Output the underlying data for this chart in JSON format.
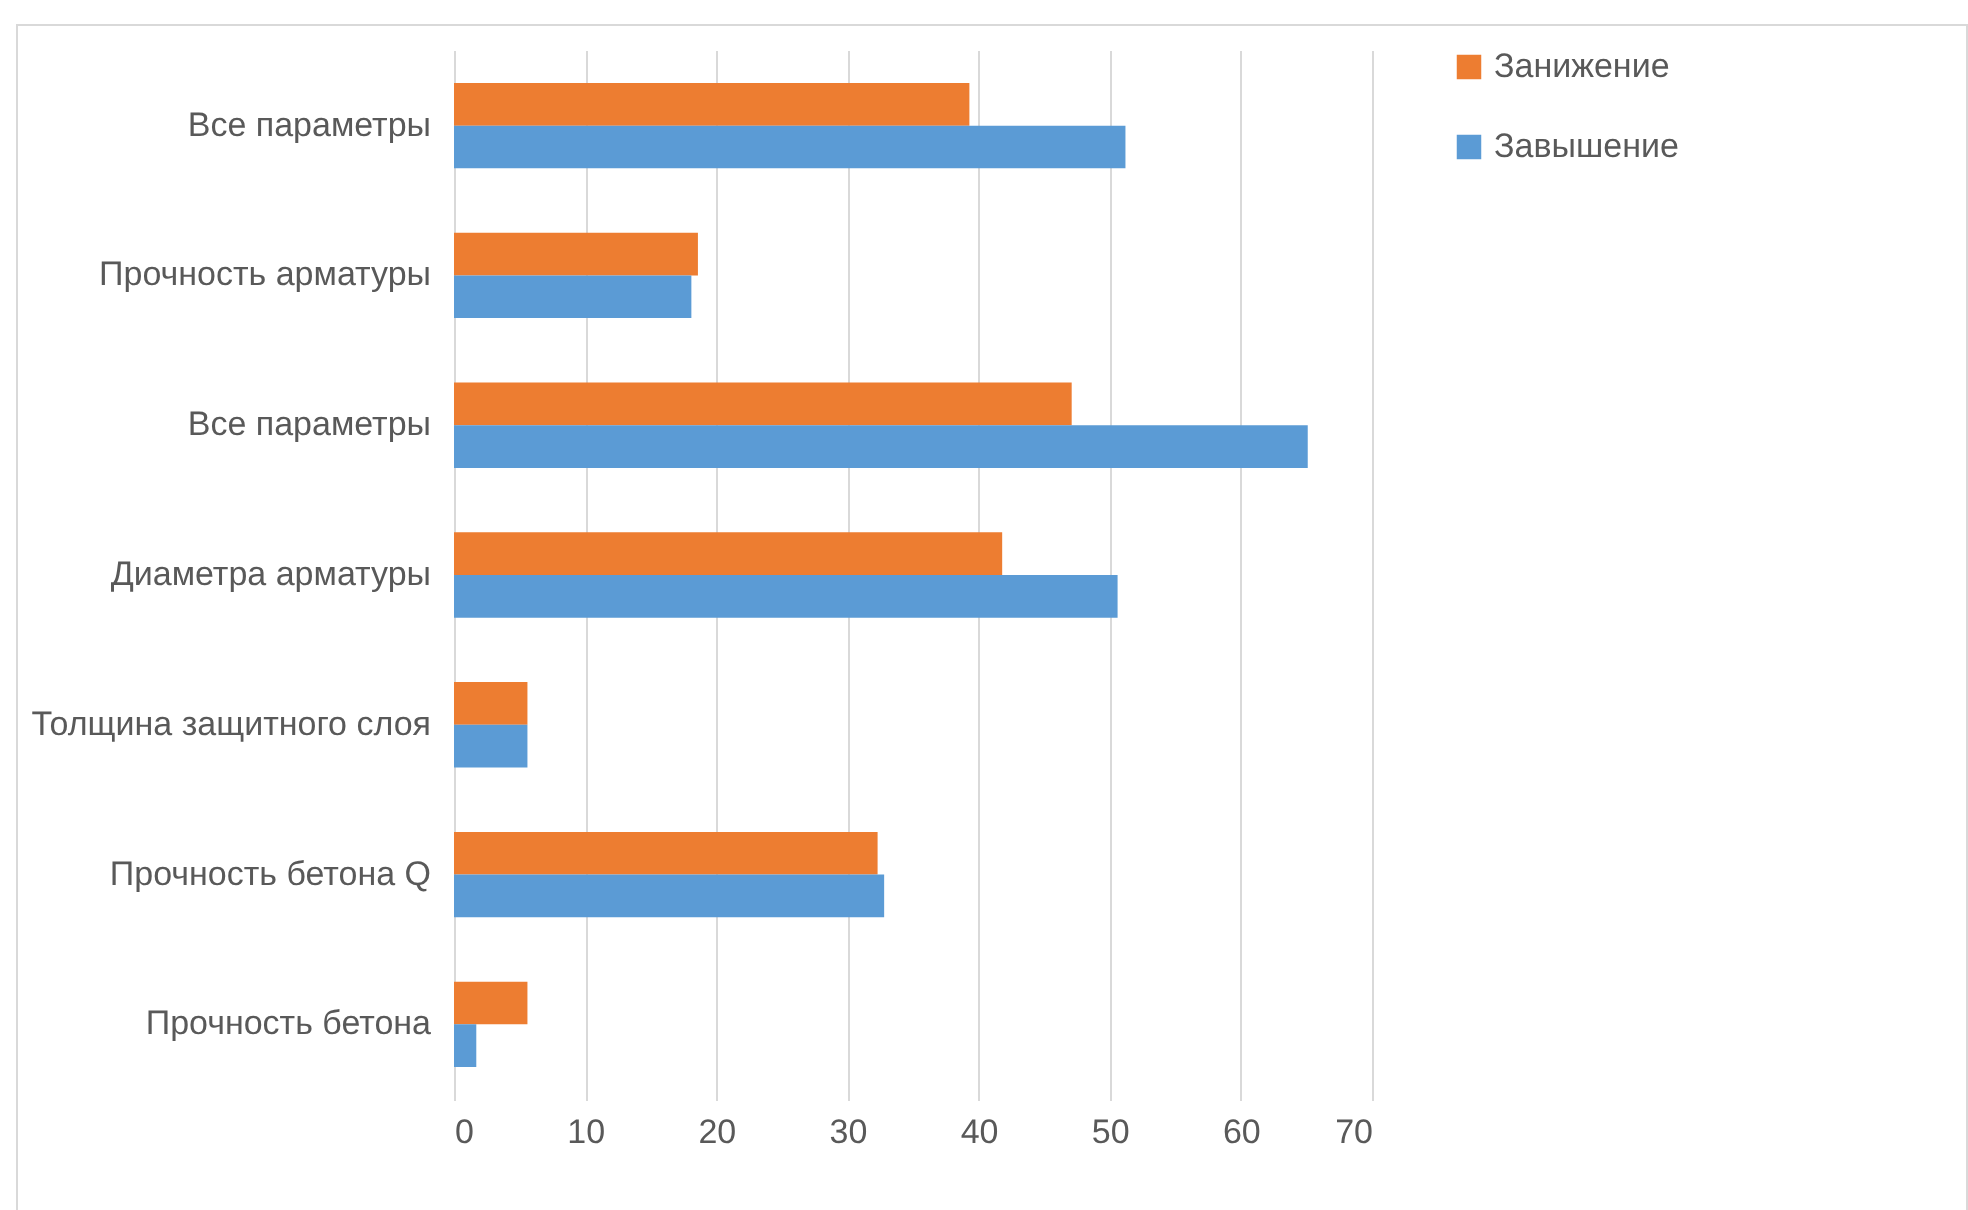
{
  "chart_data": {
    "type": "bar",
    "orientation": "horizontal",
    "categories": [
      "Все параметры",
      "Прочность арматуры",
      "Все параметры",
      "Диаметра арматуры",
      "Толщина защитного слоя",
      "Прочность бетона Q",
      "Прочность бетона"
    ],
    "series": [
      {
        "name": "Занижение",
        "color": "#ed7d31",
        "values": [
          39.3,
          18.6,
          47.1,
          41.8,
          5.6,
          32.3,
          5.6
        ]
      },
      {
        "name": "Завышение",
        "color": "#5b9bd5",
        "values": [
          51.2,
          18.1,
          65.1,
          50.6,
          5.6,
          32.8,
          1.7
        ]
      }
    ],
    "xlim": [
      0,
      70
    ],
    "xticks": [
      0,
      10,
      20,
      30,
      40,
      50,
      60,
      70
    ],
    "grid": "x",
    "legend": "right"
  }
}
